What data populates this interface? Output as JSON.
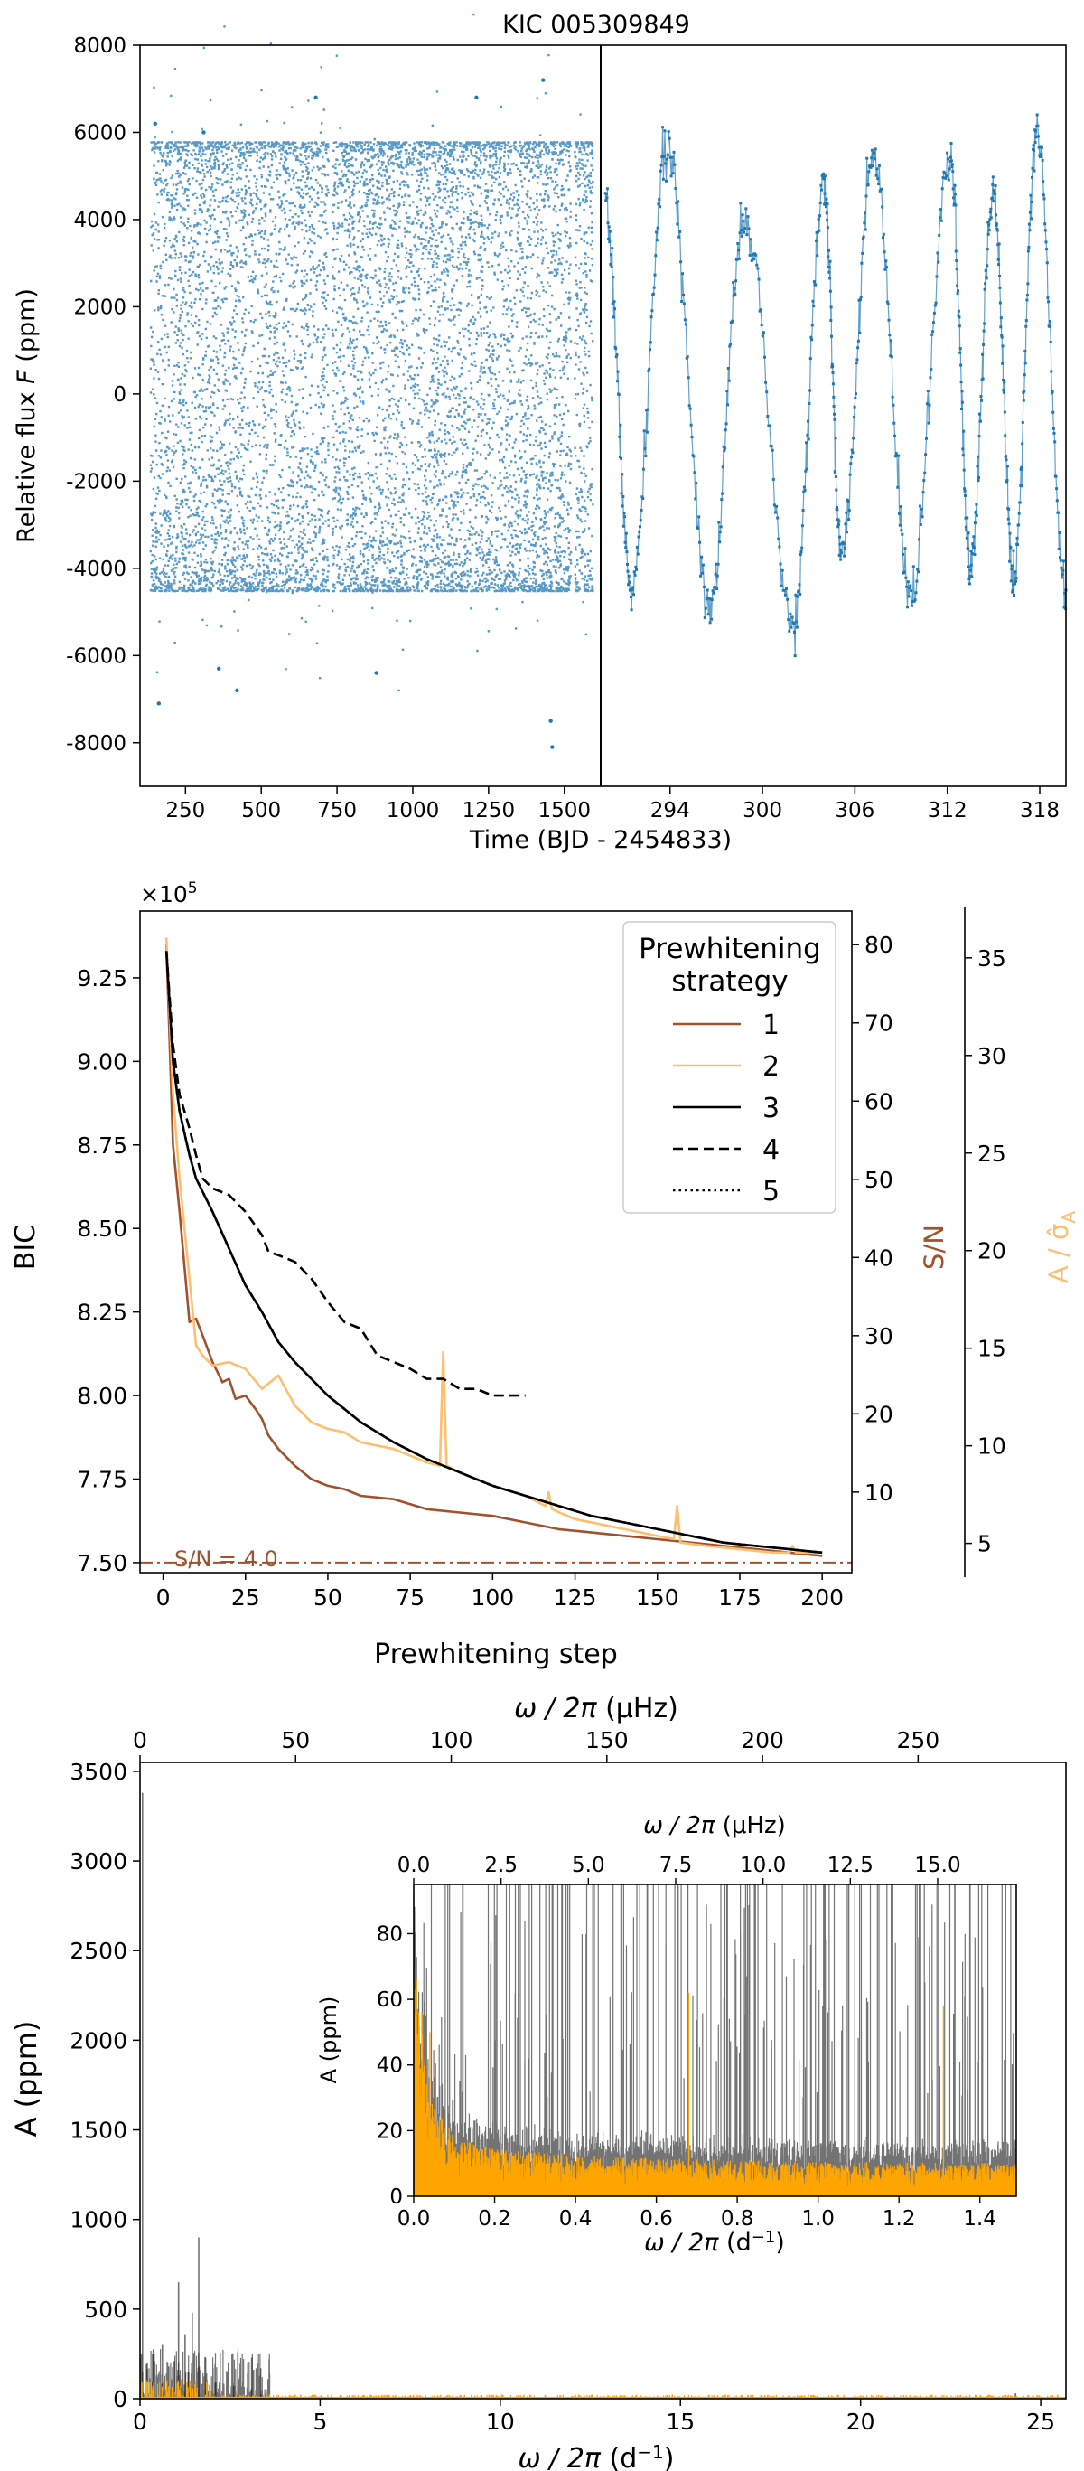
{
  "chart_data": [
    {
      "type": "scatter",
      "title": "KIC 005309849",
      "xlabel": "Time (BJD - 2454833)",
      "ylabel_prefix": "Relative flux ",
      "ylabel_var": "F",
      "ylabel_unit": " (ppm)",
      "ylim": [
        -9000,
        8000
      ],
      "yticks": [
        -8000,
        -6000,
        -4000,
        -2000,
        0,
        2000,
        4000,
        6000,
        8000
      ],
      "color": "#1f77b4",
      "left_panel": {
        "xlim": [
          100,
          1620
        ],
        "xticks": [
          250,
          500,
          750,
          1000,
          1250,
          1500
        ],
        "data_range": [
          131,
          1591
        ],
        "flux_range": [
          -4500,
          5800
        ]
      },
      "right_panel": {
        "xlim": [
          289.5,
          319.7
        ],
        "xticks": [
          294,
          300,
          306,
          312,
          318
        ],
        "peaks": [
          {
            "x": 289.8,
            "y": 4200
          },
          {
            "x": 291.5,
            "y": -4500
          },
          {
            "x": 293.8,
            "y": 5600
          },
          {
            "x": 296.6,
            "y": -4800
          },
          {
            "x": 298.8,
            "y": 4100
          },
          {
            "x": 302.0,
            "y": -5300
          },
          {
            "x": 304.0,
            "y": 4700
          },
          {
            "x": 305.1,
            "y": -3600
          },
          {
            "x": 307.2,
            "y": 5400
          },
          {
            "x": 309.6,
            "y": -4600
          },
          {
            "x": 312.2,
            "y": 5300
          },
          {
            "x": 313.5,
            "y": -3900
          },
          {
            "x": 315.0,
            "y": 4700
          },
          {
            "x": 316.3,
            "y": -4200
          },
          {
            "x": 317.8,
            "y": 6000
          },
          {
            "x": 319.7,
            "y": -4500
          }
        ]
      }
    },
    {
      "type": "line",
      "xlabel": "Prewhitening step",
      "ylabel": "BIC",
      "ylabel_right1": "S/N",
      "ylabel_right2_html": "A / σ̂",
      "ylabel_right2_sub": "A",
      "multiplier": "×10",
      "multiplier_exp": "5",
      "xlim": [
        -7,
        209
      ],
      "xticks": [
        0,
        25,
        50,
        75,
        100,
        125,
        150,
        175,
        200
      ],
      "ylim": [
        7.47,
        9.45
      ],
      "yticks": [
        7.5,
        7.75,
        8.0,
        8.25,
        8.5,
        8.75,
        9.0,
        9.25
      ],
      "ytick_labels": [
        "7.50",
        "7.75",
        "8.00",
        "8.25",
        "8.50",
        "8.75",
        "9.00",
        "9.25"
      ],
      "sn_ticks": [
        10,
        20,
        30,
        40,
        50,
        60,
        70,
        80
      ],
      "sn_ylim": [
        -0.3,
        84.3
      ],
      "asigma_ticks": [
        5,
        10,
        15,
        20,
        25,
        30,
        35
      ],
      "asigma_ylim": [
        3.5,
        37.4
      ],
      "threshold": {
        "value": 7.5,
        "label": "S/N = 4.0",
        "color": "#a0522d"
      },
      "legend": {
        "title_line1": "Prewhitening",
        "title_line2": "strategy",
        "placement": "top-right"
      },
      "series": [
        {
          "name": "1",
          "color": "#a0522d",
          "style": "solid",
          "x": [
            1,
            3,
            5,
            8,
            10,
            12,
            15,
            18,
            20,
            22,
            25,
            28,
            30,
            32,
            35,
            40,
            45,
            50,
            55,
            60,
            70,
            80,
            90,
            100,
            110,
            120,
            130,
            140,
            150,
            160,
            170,
            180,
            190,
            200
          ],
          "y": [
            9.35,
            8.75,
            8.55,
            8.22,
            8.23,
            8.18,
            8.1,
            8.04,
            8.05,
            7.99,
            8.0,
            7.96,
            7.93,
            7.88,
            7.84,
            7.79,
            7.75,
            7.73,
            7.72,
            7.7,
            7.69,
            7.66,
            7.65,
            7.64,
            7.62,
            7.6,
            7.59,
            7.58,
            7.57,
            7.56,
            7.55,
            7.54,
            7.53,
            7.52
          ]
        },
        {
          "name": "2",
          "color": "#fdbf6f",
          "style": "solid",
          "x": [
            1,
            3,
            5,
            8,
            10,
            12,
            15,
            20,
            25,
            30,
            35,
            40,
            45,
            50,
            55,
            60,
            70,
            80,
            84,
            85,
            86,
            90,
            95,
            100,
            110,
            116,
            117,
            118,
            125,
            135,
            145,
            155,
            156,
            157,
            165,
            175,
            185,
            190,
            191,
            192,
            200
          ],
          "y": [
            9.37,
            8.9,
            8.65,
            8.35,
            8.15,
            8.12,
            8.09,
            8.1,
            8.08,
            8.02,
            8.06,
            7.97,
            7.92,
            7.9,
            7.89,
            7.86,
            7.84,
            7.8,
            7.79,
            8.13,
            7.79,
            7.77,
            7.75,
            7.73,
            7.7,
            7.67,
            7.71,
            7.66,
            7.63,
            7.61,
            7.59,
            7.57,
            7.67,
            7.56,
            7.55,
            7.54,
            7.53,
            7.53,
            7.55,
            7.53,
            7.53
          ]
        },
        {
          "name": "3",
          "color": "#000000",
          "style": "solid",
          "x": [
            1,
            3,
            5,
            8,
            10,
            15,
            20,
            25,
            30,
            35,
            40,
            45,
            50,
            60,
            70,
            80,
            90,
            100,
            110,
            120,
            130,
            140,
            150,
            160,
            170,
            180,
            190,
            200
          ],
          "y": [
            9.33,
            9.0,
            8.85,
            8.72,
            8.65,
            8.55,
            8.44,
            8.33,
            8.25,
            8.16,
            8.1,
            8.05,
            8.0,
            7.92,
            7.86,
            7.81,
            7.77,
            7.73,
            7.7,
            7.67,
            7.64,
            7.62,
            7.6,
            7.58,
            7.56,
            7.55,
            7.54,
            7.53
          ]
        },
        {
          "name": "4",
          "color": "#000000",
          "style": "dashed",
          "x": [
            1,
            3,
            5,
            8,
            10,
            12,
            15,
            20,
            25,
            30,
            32,
            35,
            40,
            45,
            50,
            55,
            60,
            65,
            70,
            75,
            80,
            85,
            90,
            95,
            100,
            105,
            110
          ],
          "y": [
            9.33,
            9.05,
            8.9,
            8.8,
            8.72,
            8.65,
            8.62,
            8.6,
            8.55,
            8.48,
            8.43,
            8.42,
            8.4,
            8.35,
            8.28,
            8.22,
            8.2,
            8.12,
            8.1,
            8.08,
            8.05,
            8.05,
            8.02,
            8.02,
            8.0,
            8.0,
            8.0
          ]
        },
        {
          "name": "5",
          "color": "#000000",
          "style": "dotted",
          "x": [
            1,
            3,
            5,
            8,
            10,
            15,
            20,
            25,
            30,
            35,
            40,
            45,
            50,
            60,
            70,
            80,
            90,
            100,
            110,
            120,
            130,
            140,
            150,
            160,
            170,
            180,
            190,
            200
          ],
          "y": [
            9.33,
            9.0,
            8.85,
            8.72,
            8.65,
            8.55,
            8.44,
            8.33,
            8.25,
            8.16,
            8.1,
            8.05,
            8.0,
            7.92,
            7.86,
            7.81,
            7.77,
            7.73,
            7.7,
            7.67,
            7.64,
            7.62,
            7.6,
            7.58,
            7.56,
            7.55,
            7.54,
            7.53
          ]
        }
      ]
    },
    {
      "type": "bar",
      "ylabel": "A (ppm)",
      "xlabel_prefix": "ω / 2π",
      "xlabel_unit": " (d",
      "xlabel_exp": "−1",
      "xlabel_close": ")",
      "top_xlabel_prefix": "ω / 2π",
      "top_xlabel_unit": " (μHz)",
      "xlim": [
        0,
        25.7
      ],
      "xticks": [
        0,
        5,
        10,
        15,
        20,
        25
      ],
      "ylim": [
        0,
        3550
      ],
      "yticks": [
        0,
        500,
        1000,
        1500,
        2000,
        2500,
        3000,
        3500
      ],
      "top_xlim_uhz": [
        0,
        297.5
      ],
      "top_xticks": [
        0,
        50,
        100,
        150,
        200,
        250
      ],
      "colors": {
        "periodogram": "#000000",
        "residual": "#ffa500"
      },
      "peaks": [
        {
          "x": 0.07,
          "a": 3380
        },
        {
          "x": 1.63,
          "a": 900
        },
        {
          "x": 1.07,
          "a": 650
        },
        {
          "x": 1.45,
          "a": 480
        },
        {
          "x": 0.62,
          "a": 300
        },
        {
          "x": 0.35,
          "a": 250
        },
        {
          "x": 0.95,
          "a": 210
        },
        {
          "x": 1.25,
          "a": 360
        },
        {
          "x": 1.82,
          "a": 230
        },
        {
          "x": 0.8,
          "a": 180
        },
        {
          "x": 0.2,
          "a": 200
        },
        {
          "x": 1.35,
          "a": 150
        },
        {
          "x": 2.1,
          "a": 90
        },
        {
          "x": 2.6,
          "a": 70
        },
        {
          "x": 3.1,
          "a": 230
        },
        {
          "x": 3.35,
          "a": 170
        },
        {
          "x": 24.3,
          "a": 30
        }
      ],
      "inset": {
        "ylabel": "A (ppm)",
        "xlabel_prefix": "ω / 2π",
        "xlabel_unit": " (d",
        "xlabel_exp": "−1",
        "xlabel_close": ")",
        "top_xlabel_prefix": "ω / 2π",
        "top_xlabel_unit": " (μHz)",
        "xlim": [
          0,
          1.49
        ],
        "xticks": [
          0.0,
          0.2,
          0.4,
          0.6,
          0.8,
          1.0,
          1.2,
          1.4
        ],
        "xtick_labels": [
          "0.0",
          "0.2",
          "0.4",
          "0.6",
          "0.8",
          "1.0",
          "1.2",
          "1.4"
        ],
        "ylim": [
          0,
          95
        ],
        "yticks": [
          0,
          20,
          40,
          60,
          80
        ],
        "top_xlim_uhz": [
          0,
          17.25
        ],
        "top_xticks": [
          0.0,
          2.5,
          5.0,
          7.5,
          10.0,
          12.5,
          15.0
        ],
        "top_xtick_labels": [
          "0.0",
          "2.5",
          "5.0",
          "7.5",
          "10.0",
          "12.5",
          "15.0"
        ]
      }
    }
  ]
}
